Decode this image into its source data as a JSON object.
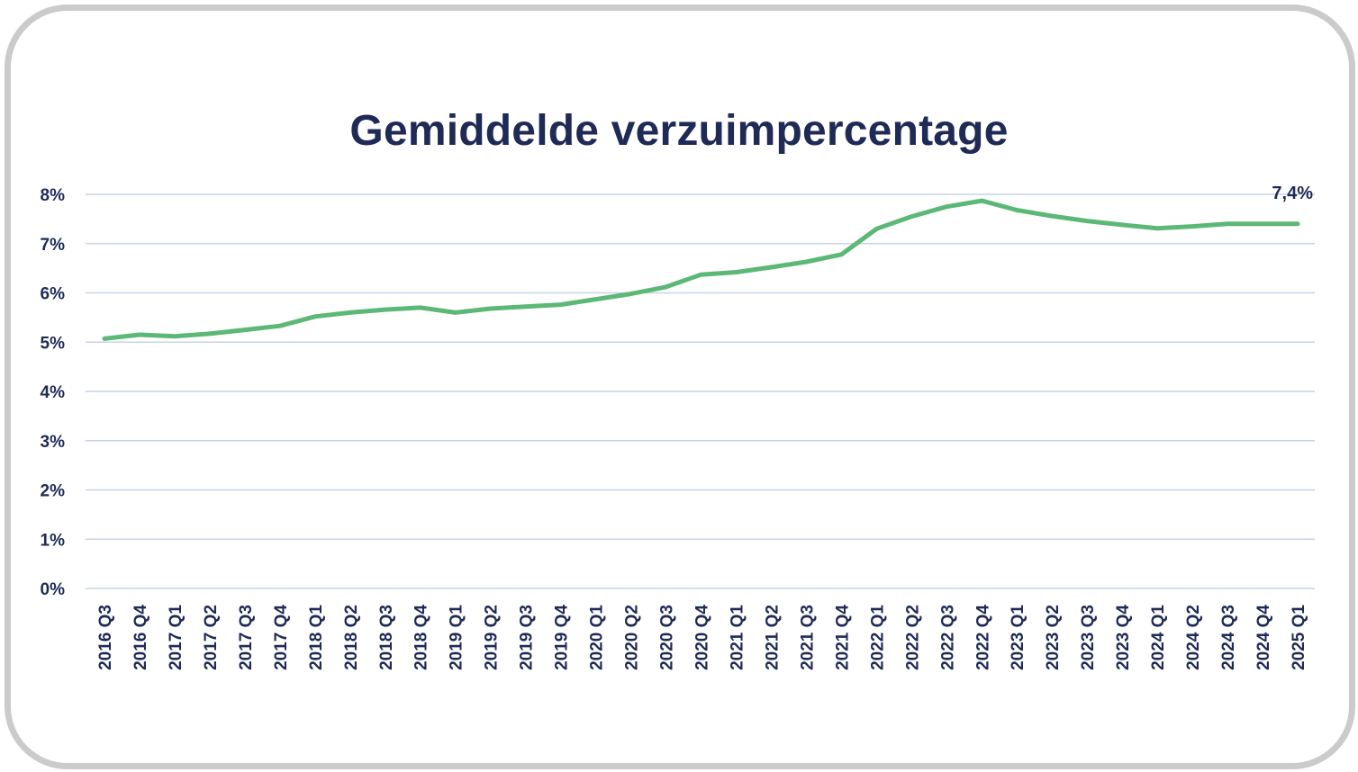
{
  "chart_data": {
    "type": "line",
    "title": "Gemiddelde verzuimpercentage",
    "categories": [
      "2016 Q3",
      "2016 Q4",
      "2017 Q1",
      "2017 Q2",
      "2017 Q3",
      "2017 Q4",
      "2018 Q1",
      "2018 Q2",
      "2018 Q3",
      "2018 Q4",
      "2019 Q1",
      "2019 Q2",
      "2019 Q3",
      "2019 Q4",
      "2020 Q1",
      "2020 Q2",
      "2020 Q3",
      "2020 Q4",
      "2021 Q1",
      "2021 Q2",
      "2021 Q3",
      "2021 Q4",
      "2022 Q1",
      "2022 Q2",
      "2022 Q3",
      "2022 Q4",
      "2023 Q1",
      "2023 Q2",
      "2023 Q3",
      "2023 Q4",
      "2024 Q1",
      "2024 Q2",
      "2024 Q3",
      "2024 Q4",
      "2025 Q1"
    ],
    "series": [
      {
        "values": [
          5.07,
          5.15,
          5.12,
          5.17,
          5.25,
          5.33,
          5.52,
          5.6,
          5.66,
          5.7,
          5.6,
          5.68,
          5.72,
          5.76,
          5.87,
          5.98,
          6.12,
          6.37,
          6.42,
          6.52,
          6.63,
          6.78,
          7.3,
          7.55,
          7.75,
          7.87,
          7.68,
          7.56,
          7.46,
          7.38,
          7.31,
          7.35,
          7.4,
          7.4,
          7.4
        ]
      }
    ],
    "ylim": [
      0,
      8
    ],
    "yticks": [
      "0%",
      "1%",
      "2%",
      "3%",
      "4%",
      "5%",
      "6%",
      "7%",
      "8%"
    ],
    "data_label": "7,4%",
    "xlabel": "",
    "ylabel": "",
    "grid": true,
    "line_color": "#5cb877",
    "grid_color": "#c7d3e6",
    "text_color": "#1f2a56"
  }
}
